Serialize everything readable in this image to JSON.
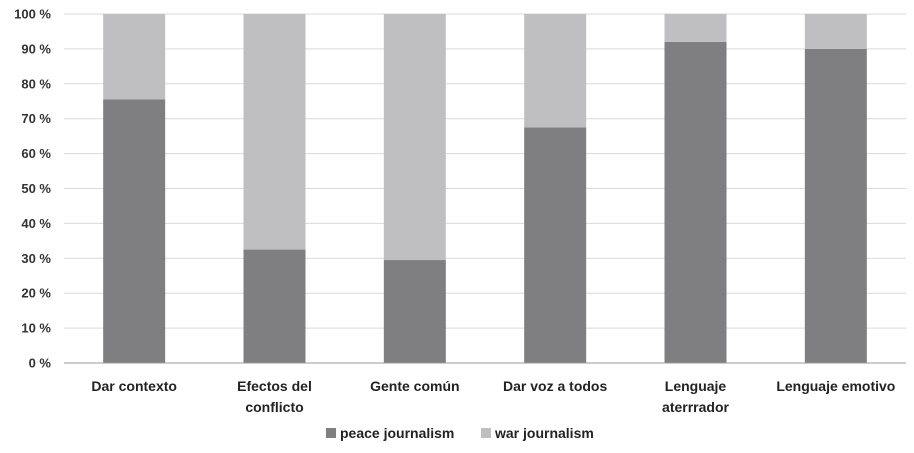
{
  "chart_data": {
    "type": "bar",
    "stacked": true,
    "percent": true,
    "categories": [
      [
        "Dar contexto"
      ],
      [
        "Efectos del",
        "conflicto"
      ],
      [
        "Gente común"
      ],
      [
        "Dar voz a todos"
      ],
      [
        "Lenguaje",
        "aterrrador"
      ],
      [
        "Lenguaje emotivo"
      ]
    ],
    "series": [
      {
        "name": "peace journalism",
        "color": "#7f7f82",
        "values": [
          75.5,
          32.5,
          29.5,
          67.5,
          92,
          90
        ]
      },
      {
        "name": "war journalism",
        "color": "#bfbfc2",
        "values": [
          24.5,
          67.5,
          70.5,
          32.5,
          8,
          10
        ]
      }
    ],
    "ylim": [
      0,
      100
    ],
    "yticks": [
      "0 %",
      "10 %",
      "20 %",
      "30 %",
      "40 %",
      "50 %",
      "60 %",
      "70 %",
      "80 %",
      "90 %",
      "100 %"
    ],
    "grid": true,
    "legend_position": "bottom",
    "title": "",
    "xlabel": "",
    "ylabel": ""
  }
}
